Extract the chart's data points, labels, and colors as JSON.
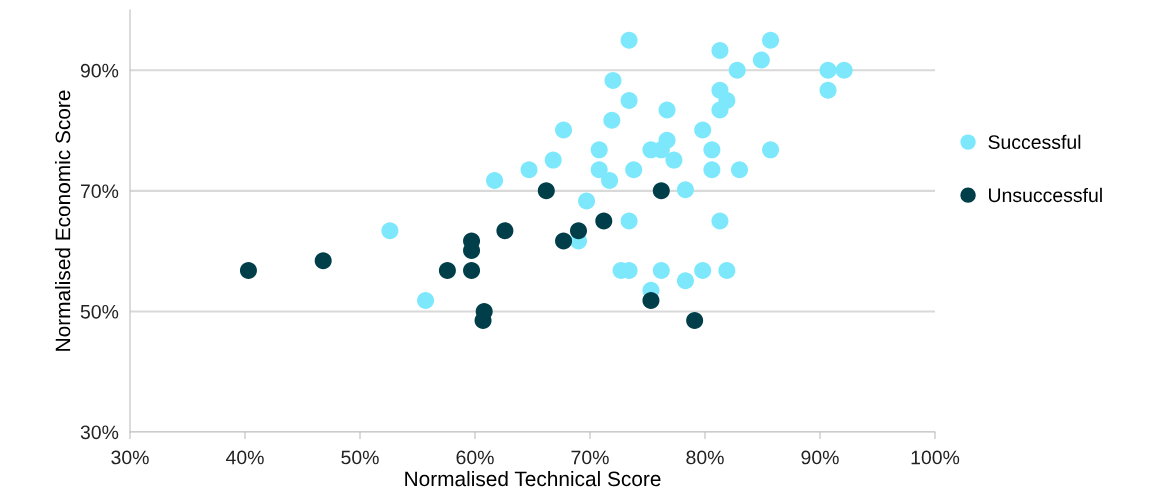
{
  "chart_data": {
    "type": "scatter",
    "xlabel": "Normalised Technical Score",
    "ylabel": "Normalised Economic Score",
    "xlim": [
      30,
      100
    ],
    "ylim": [
      30,
      100
    ],
    "xticks": [
      {
        "value": 30,
        "label": "30%"
      },
      {
        "value": 40,
        "label": "40%"
      },
      {
        "value": 50,
        "label": "50%"
      },
      {
        "value": 60,
        "label": "60%"
      },
      {
        "value": 70,
        "label": "70%"
      },
      {
        "value": 80,
        "label": "80%"
      },
      {
        "value": 90,
        "label": "90%"
      },
      {
        "value": 100,
        "label": "100%"
      }
    ],
    "yticks": [
      {
        "value": 30,
        "label": "30%"
      },
      {
        "value": 50,
        "label": "50%"
      },
      {
        "value": 70,
        "label": "70%"
      },
      {
        "value": 90,
        "label": "90%"
      }
    ],
    "grid": "y",
    "legend": "right",
    "marker": "circle",
    "series": [
      {
        "name": "Successful",
        "color": "#7de8fc",
        "x": [
          52.6,
          55.7,
          61.7,
          64.7,
          66.8,
          67.7,
          69.7,
          69.0,
          70.8,
          70.8,
          71.7,
          71.9,
          72.0,
          73.4,
          73.4,
          73.4,
          73.8,
          72.7,
          73.4,
          75.3,
          75.3,
          76.2,
          76.7,
          76.7,
          77.3,
          76.2,
          78.3,
          78.3,
          79.8,
          79.8,
          80.6,
          80.6,
          81.3,
          81.3,
          81.3,
          81.9,
          81.3,
          81.9,
          82.8,
          83.0,
          84.9,
          85.7,
          85.7,
          90.7,
          92.1,
          90.7
        ],
        "values": [
          63.4,
          51.8,
          71.7,
          73.5,
          75.1,
          80.1,
          68.3,
          61.7,
          76.8,
          73.5,
          71.7,
          81.7,
          88.3,
          95.0,
          85.0,
          65.0,
          73.5,
          56.8,
          56.8,
          76.8,
          53.5,
          76.8,
          83.4,
          78.4,
          75.1,
          56.8,
          70.2,
          55.1,
          80.1,
          56.8,
          76.8,
          73.5,
          65.0,
          93.3,
          86.7,
          85.0,
          83.4,
          56.8,
          90.0,
          73.5,
          91.7,
          95.0,
          76.8,
          90.0,
          90.0,
          86.7
        ]
      },
      {
        "name": "Unsuccessful",
        "color": "#003f4a",
        "x": [
          40.3,
          46.8,
          57.6,
          59.7,
          59.7,
          59.7,
          60.7,
          60.8,
          62.6,
          66.2,
          67.7,
          69.0,
          71.2,
          76.2,
          75.3,
          79.1
        ],
        "values": [
          56.8,
          58.4,
          56.8,
          61.7,
          60.1,
          56.8,
          48.5,
          50.0,
          63.4,
          70.0,
          61.7,
          63.4,
          65.0,
          70.0,
          51.8,
          48.5
        ]
      }
    ]
  }
}
